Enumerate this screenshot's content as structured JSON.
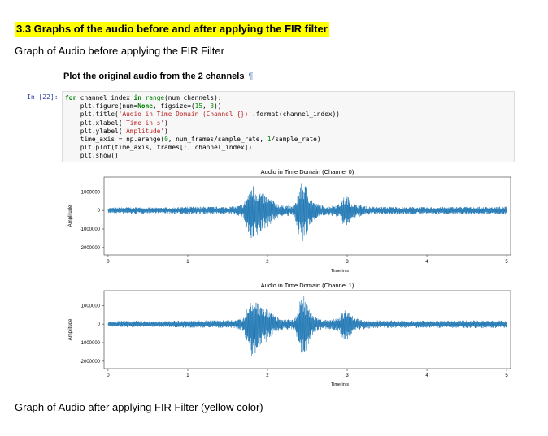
{
  "section": {
    "heading": "3.3 Graphs of the audio before and after applying the FIR filter",
    "subtitle_before": "Graph of Audio before applying the FIR Filter",
    "subtitle_after": "Graph of Audio after applying FIR Filter (yellow color)"
  },
  "notebook": {
    "markdown_heading": "Plot the original audio from the 2 channels",
    "pilcrow": "¶",
    "prompt": "In [22]:",
    "code_lines": [
      "for channel_index in range(num_channels):",
      "    plt.figure(num=None, figsize=(15, 3))",
      "    plt.title('Audio in Time Domain (Channel {})'.format(channel_index))",
      "    plt.xlabel('Time in s')",
      "    plt.ylabel('Amplitude')",
      "    time_axis = np.arange(0, num_frames/sample_rate, 1/sample_rate)",
      "    plt.plot(time_axis, frames[:, channel_index])",
      "    plt.show()"
    ]
  },
  "chart_data": [
    {
      "type": "line",
      "title": "Audio in Time Domain (Channel 0)",
      "xlabel": "Time in s",
      "ylabel": "Amplitude",
      "xlim": [
        -0.05,
        5.05
      ],
      "ylim": [
        -2400000,
        1800000
      ],
      "x_ticks": [
        "0",
        "1",
        "2",
        "3",
        "4",
        "5"
      ],
      "y_ticks": [
        "1000000",
        "0",
        "-1000000",
        "-2000000"
      ],
      "color": "#1f77b4",
      "envelope": {
        "x": [
          0,
          0.3,
          0.6,
          1.0,
          1.4,
          1.6,
          1.7,
          1.75,
          1.8,
          1.85,
          1.9,
          1.95,
          2.0,
          2.05,
          2.1,
          2.15,
          2.2,
          2.25,
          2.3,
          2.35,
          2.4,
          2.45,
          2.5,
          2.55,
          2.6,
          2.7,
          2.8,
          2.9,
          2.95,
          3.0,
          3.05,
          3.1,
          3.15,
          3.2,
          3.3,
          3.5,
          4.0,
          4.5,
          5.0
        ],
        "upper": [
          150000,
          180000,
          150000,
          200000,
          200000,
          220000,
          350000,
          900000,
          1500000,
          1300000,
          1100000,
          900000,
          800000,
          600000,
          450000,
          300000,
          250000,
          300000,
          200000,
          400000,
          1300000,
          1600000,
          1200000,
          700000,
          400000,
          250000,
          250000,
          350000,
          700000,
          800000,
          500000,
          350000,
          300000,
          250000,
          200000,
          200000,
          180000,
          200000,
          200000
        ],
        "lower": [
          -150000,
          -180000,
          -150000,
          -200000,
          -200000,
          -220000,
          -400000,
          -1200000,
          -2000000,
          -1600000,
          -1300000,
          -1100000,
          -900000,
          -700000,
          -500000,
          -350000,
          -300000,
          -350000,
          -250000,
          -500000,
          -1500000,
          -1900000,
          -1400000,
          -800000,
          -450000,
          -300000,
          -300000,
          -400000,
          -800000,
          -900000,
          -600000,
          -400000,
          -350000,
          -300000,
          -220000,
          -220000,
          -200000,
          -220000,
          -220000
        ]
      }
    },
    {
      "type": "line",
      "title": "Audio in Time Domain (Channel 1)",
      "xlabel": "Time in s",
      "ylabel": "Amplitude",
      "xlim": [
        -0.05,
        5.05
      ],
      "ylim": [
        -2400000,
        1800000
      ],
      "x_ticks": [
        "0",
        "1",
        "2",
        "3",
        "4",
        "5"
      ],
      "y_ticks": [
        "1000000",
        "0",
        "-1000000",
        "-2000000"
      ],
      "color": "#1f77b4",
      "envelope": {
        "x": [
          0,
          0.3,
          0.6,
          1.0,
          1.4,
          1.6,
          1.7,
          1.75,
          1.8,
          1.85,
          1.9,
          1.95,
          2.0,
          2.05,
          2.1,
          2.15,
          2.2,
          2.25,
          2.3,
          2.35,
          2.4,
          2.45,
          2.5,
          2.55,
          2.6,
          2.7,
          2.8,
          2.9,
          2.95,
          3.0,
          3.05,
          3.1,
          3.15,
          3.2,
          3.3,
          3.5,
          4.0,
          4.5,
          5.0
        ],
        "upper": [
          150000,
          180000,
          150000,
          200000,
          200000,
          220000,
          350000,
          900000,
          1500000,
          1300000,
          1100000,
          900000,
          800000,
          600000,
          450000,
          300000,
          250000,
          300000,
          200000,
          400000,
          1300000,
          1600000,
          1200000,
          700000,
          400000,
          250000,
          250000,
          350000,
          700000,
          800000,
          500000,
          350000,
          300000,
          250000,
          200000,
          200000,
          180000,
          200000,
          200000
        ],
        "lower": [
          -150000,
          -180000,
          -150000,
          -200000,
          -200000,
          -220000,
          -400000,
          -1200000,
          -2000000,
          -1600000,
          -1300000,
          -1100000,
          -900000,
          -700000,
          -500000,
          -350000,
          -300000,
          -350000,
          -250000,
          -500000,
          -1500000,
          -1900000,
          -1400000,
          -800000,
          -450000,
          -300000,
          -300000,
          -400000,
          -800000,
          -900000,
          -600000,
          -400000,
          -350000,
          -300000,
          -220000,
          -220000,
          -200000,
          -220000,
          -220000
        ]
      }
    }
  ]
}
